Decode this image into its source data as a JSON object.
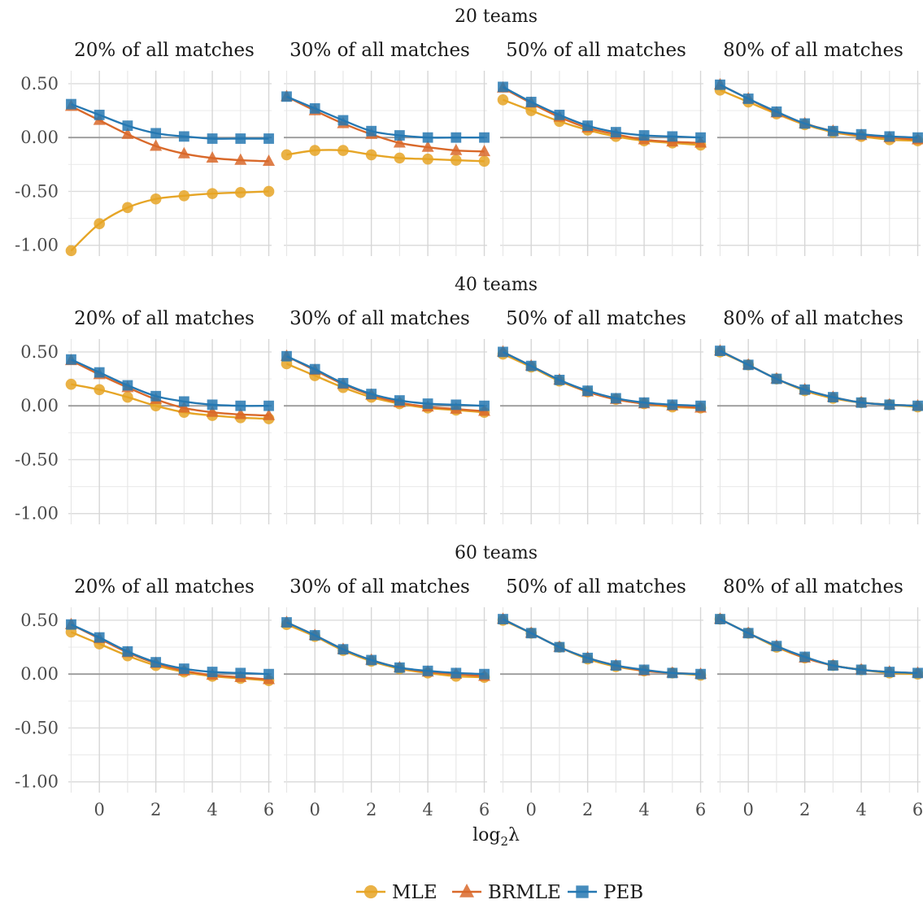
{
  "figure": {
    "xlabel_main": "log",
    "xlabel_sub": "2",
    "xlabel_tail": "λ"
  },
  "legend": [
    {
      "name": "MLE",
      "color": "#E6A526",
      "marker": "circle"
    },
    {
      "name": "BRMLE",
      "color": "#D9692A",
      "marker": "triangle"
    },
    {
      "name": "PEB",
      "color": "#2678B2",
      "marker": "square"
    }
  ],
  "chart_data": {
    "type": "line",
    "facets": "rows = number of teams, columns = share of matches",
    "x": [
      -1,
      0,
      1,
      2,
      3,
      4,
      5,
      6
    ],
    "x_ticks": [
      0,
      2,
      4,
      6
    ],
    "xlim": [
      -1.1,
      6.1
    ],
    "ylim": [
      -1.1,
      0.62
    ],
    "y_ticks": [
      0.5,
      0,
      -0.5,
      -1.0
    ],
    "y_tick_labels": [
      "0.50",
      "0.00",
      "-0.50",
      "-1.00"
    ],
    "grid": true,
    "legend_position": "bottom",
    "rows": [
      {
        "title": "20 teams",
        "panels": [
          {
            "title": "20% of all matches",
            "series": [
              {
                "name": "MLE",
                "values": [
                  -1.05,
                  -0.8,
                  -0.65,
                  -0.57,
                  -0.54,
                  -0.52,
                  -0.51,
                  -0.5
                ]
              },
              {
                "name": "BRMLE",
                "values": [
                  0.29,
                  0.16,
                  0.03,
                  -0.08,
                  -0.15,
                  -0.19,
                  -0.21,
                  -0.22
                ]
              },
              {
                "name": "PEB",
                "values": [
                  0.31,
                  0.21,
                  0.11,
                  0.04,
                  0.01,
                  -0.01,
                  -0.01,
                  -0.01
                ]
              }
            ]
          },
          {
            "title": "30% of all matches",
            "series": [
              {
                "name": "MLE",
                "values": [
                  -0.16,
                  -0.12,
                  -0.12,
                  -0.16,
                  -0.19,
                  -0.2,
                  -0.21,
                  -0.22
                ]
              },
              {
                "name": "BRMLE",
                "values": [
                  0.38,
                  0.25,
                  0.13,
                  0.03,
                  -0.05,
                  -0.09,
                  -0.12,
                  -0.13
                ]
              },
              {
                "name": "PEB",
                "values": [
                  0.38,
                  0.27,
                  0.16,
                  0.06,
                  0.02,
                  0.0,
                  0.0,
                  0.0
                ]
              }
            ]
          },
          {
            "title": "50% of all matches",
            "series": [
              {
                "name": "MLE",
                "values": [
                  0.35,
                  0.25,
                  0.15,
                  0.07,
                  0.01,
                  -0.03,
                  -0.05,
                  -0.07
                ]
              },
              {
                "name": "BRMLE",
                "values": [
                  0.46,
                  0.32,
                  0.19,
                  0.09,
                  0.03,
                  -0.02,
                  -0.04,
                  -0.05
                ]
              },
              {
                "name": "PEB",
                "values": [
                  0.47,
                  0.33,
                  0.21,
                  0.11,
                  0.05,
                  0.02,
                  0.01,
                  0.0
                ]
              }
            ]
          },
          {
            "title": "80% of all matches",
            "series": [
              {
                "name": "MLE",
                "values": [
                  0.44,
                  0.33,
                  0.22,
                  0.12,
                  0.05,
                  0.01,
                  -0.02,
                  -0.03
                ]
              },
              {
                "name": "BRMLE",
                "values": [
                  0.49,
                  0.36,
                  0.23,
                  0.13,
                  0.06,
                  0.02,
                  0.0,
                  -0.02
                ]
              },
              {
                "name": "PEB",
                "values": [
                  0.49,
                  0.36,
                  0.24,
                  0.13,
                  0.06,
                  0.03,
                  0.01,
                  0.0
                ]
              }
            ]
          }
        ]
      },
      {
        "title": "40 teams",
        "panels": [
          {
            "title": "20% of all matches",
            "series": [
              {
                "name": "MLE",
                "values": [
                  0.2,
                  0.15,
                  0.08,
                  0.0,
                  -0.06,
                  -0.09,
                  -0.11,
                  -0.12
                ]
              },
              {
                "name": "BRMLE",
                "values": [
                  0.42,
                  0.29,
                  0.17,
                  0.06,
                  -0.02,
                  -0.06,
                  -0.08,
                  -0.09
                ]
              },
              {
                "name": "PEB",
                "values": [
                  0.43,
                  0.31,
                  0.19,
                  0.09,
                  0.04,
                  0.01,
                  0.0,
                  0.0
                ]
              }
            ]
          },
          {
            "title": "30% of all matches",
            "series": [
              {
                "name": "MLE",
                "values": [
                  0.39,
                  0.28,
                  0.17,
                  0.08,
                  0.02,
                  -0.02,
                  -0.04,
                  -0.06
                ]
              },
              {
                "name": "BRMLE",
                "values": [
                  0.46,
                  0.33,
                  0.2,
                  0.1,
                  0.03,
                  -0.01,
                  -0.03,
                  -0.05
                ]
              },
              {
                "name": "PEB",
                "values": [
                  0.46,
                  0.34,
                  0.21,
                  0.11,
                  0.05,
                  0.02,
                  0.01,
                  0.0
                ]
              }
            ]
          },
          {
            "title": "50% of all matches",
            "series": [
              {
                "name": "MLE",
                "values": [
                  0.48,
                  0.36,
                  0.23,
                  0.13,
                  0.06,
                  0.02,
                  -0.01,
                  -0.02
                ]
              },
              {
                "name": "BRMLE",
                "values": [
                  0.5,
                  0.37,
                  0.24,
                  0.13,
                  0.06,
                  0.02,
                  0.0,
                  -0.02
                ]
              },
              {
                "name": "PEB",
                "values": [
                  0.5,
                  0.37,
                  0.24,
                  0.14,
                  0.07,
                  0.03,
                  0.01,
                  0.0
                ]
              }
            ]
          },
          {
            "title": "80% of all matches",
            "series": [
              {
                "name": "MLE",
                "values": [
                  0.5,
                  0.38,
                  0.25,
                  0.14,
                  0.07,
                  0.03,
                  0.01,
                  -0.01
                ]
              },
              {
                "name": "BRMLE",
                "values": [
                  0.51,
                  0.38,
                  0.25,
                  0.15,
                  0.08,
                  0.03,
                  0.01,
                  0.0
                ]
              },
              {
                "name": "PEB",
                "values": [
                  0.51,
                  0.38,
                  0.25,
                  0.15,
                  0.08,
                  0.03,
                  0.01,
                  0.0
                ]
              }
            ]
          }
        ]
      },
      {
        "title": "60 teams",
        "panels": [
          {
            "title": "20% of all matches",
            "series": [
              {
                "name": "MLE",
                "values": [
                  0.39,
                  0.28,
                  0.17,
                  0.08,
                  0.02,
                  -0.02,
                  -0.04,
                  -0.06
                ]
              },
              {
                "name": "BRMLE",
                "values": [
                  0.46,
                  0.33,
                  0.2,
                  0.1,
                  0.03,
                  -0.01,
                  -0.03,
                  -0.05
                ]
              },
              {
                "name": "PEB",
                "values": [
                  0.46,
                  0.34,
                  0.21,
                  0.11,
                  0.05,
                  0.02,
                  0.01,
                  0.0
                ]
              }
            ]
          },
          {
            "title": "30% of all matches",
            "series": [
              {
                "name": "MLE",
                "values": [
                  0.46,
                  0.35,
                  0.22,
                  0.12,
                  0.05,
                  0.01,
                  -0.02,
                  -0.03
                ]
              },
              {
                "name": "BRMLE",
                "values": [
                  0.48,
                  0.36,
                  0.23,
                  0.13,
                  0.06,
                  0.02,
                  0.0,
                  -0.02
                ]
              },
              {
                "name": "PEB",
                "values": [
                  0.48,
                  0.36,
                  0.23,
                  0.13,
                  0.06,
                  0.03,
                  0.01,
                  0.0
                ]
              }
            ]
          },
          {
            "title": "50% of all matches",
            "series": [
              {
                "name": "MLE",
                "values": [
                  0.5,
                  0.38,
                  0.25,
                  0.14,
                  0.07,
                  0.03,
                  0.01,
                  -0.01
                ]
              },
              {
                "name": "BRMLE",
                "values": [
                  0.51,
                  0.38,
                  0.25,
                  0.15,
                  0.08,
                  0.03,
                  0.01,
                  0.0
                ]
              },
              {
                "name": "PEB",
                "values": [
                  0.51,
                  0.38,
                  0.25,
                  0.15,
                  0.08,
                  0.04,
                  0.01,
                  0.0
                ]
              }
            ]
          },
          {
            "title": "80% of all matches",
            "series": [
              {
                "name": "MLE",
                "values": [
                  0.51,
                  0.38,
                  0.25,
                  0.15,
                  0.08,
                  0.04,
                  0.01,
                  0.0
                ]
              },
              {
                "name": "BRMLE",
                "values": [
                  0.51,
                  0.38,
                  0.26,
                  0.15,
                  0.08,
                  0.04,
                  0.02,
                  0.01
                ]
              },
              {
                "name": "PEB",
                "values": [
                  0.51,
                  0.38,
                  0.26,
                  0.16,
                  0.08,
                  0.04,
                  0.02,
                  0.01
                ]
              }
            ]
          }
        ]
      }
    ]
  }
}
